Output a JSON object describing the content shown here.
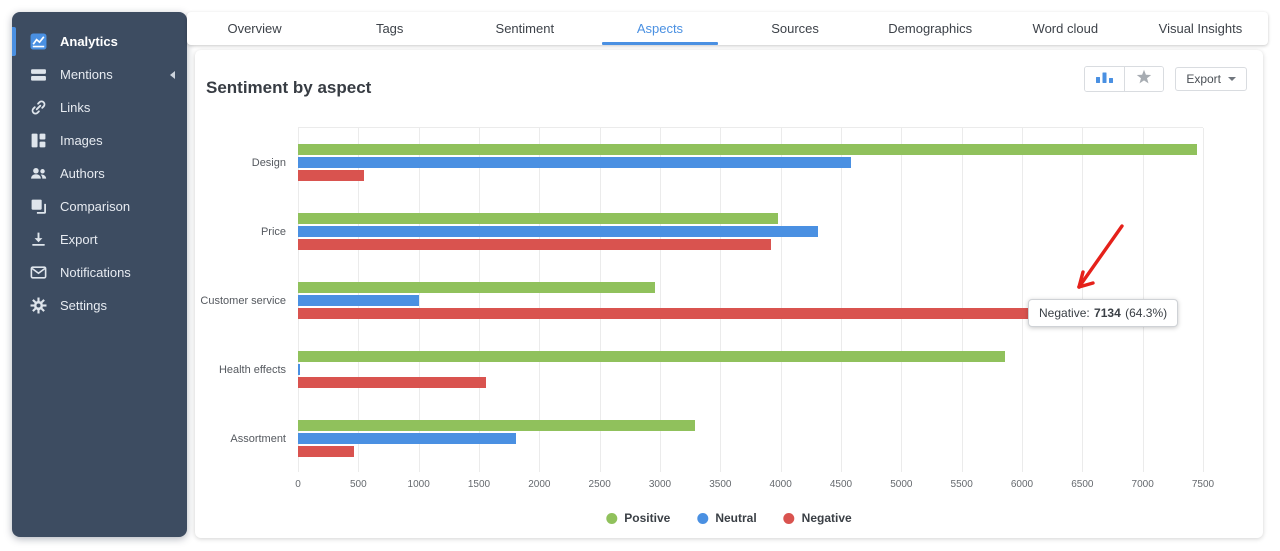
{
  "sidebar": {
    "items": [
      {
        "label": "Analytics",
        "icon": "analytics-icon",
        "active": true,
        "has_submenu": false
      },
      {
        "label": "Mentions",
        "icon": "mentions-icon",
        "active": false,
        "has_submenu": true
      },
      {
        "label": "Links",
        "icon": "links-icon",
        "active": false,
        "has_submenu": false
      },
      {
        "label": "Images",
        "icon": "images-icon",
        "active": false,
        "has_submenu": false
      },
      {
        "label": "Authors",
        "icon": "authors-icon",
        "active": false,
        "has_submenu": false
      },
      {
        "label": "Comparison",
        "icon": "comparison-icon",
        "active": false,
        "has_submenu": false
      },
      {
        "label": "Export",
        "icon": "export-icon",
        "active": false,
        "has_submenu": false
      },
      {
        "label": "Notifications",
        "icon": "notifications-icon",
        "active": false,
        "has_submenu": false
      },
      {
        "label": "Settings",
        "icon": "settings-icon",
        "active": false,
        "has_submenu": false
      }
    ]
  },
  "tabs": {
    "active": "Aspects",
    "items": [
      "Overview",
      "Tags",
      "Sentiment",
      "Aspects",
      "Sources",
      "Demographics",
      "Word cloud",
      "Visual Insights"
    ]
  },
  "panel": {
    "title": "Sentiment by aspect",
    "export_label": "Export",
    "chart_type_buttons": [
      "bar-chart-icon",
      "radar-chart-icon"
    ],
    "accent_color": "#4a90e2"
  },
  "chart_data": {
    "type": "bar",
    "orientation": "horizontal",
    "title": "Sentiment by aspect",
    "categories": [
      "Design",
      "Price",
      "Customer service",
      "Health effects",
      "Assortment"
    ],
    "series": [
      {
        "name": "Positive",
        "color": "#90c15c",
        "values": [
          7450,
          3980,
          2960,
          5860,
          3290
        ]
      },
      {
        "name": "Neutral",
        "color": "#4a90e2",
        "values": [
          4580,
          4310,
          1000,
          20,
          1810
        ]
      },
      {
        "name": "Negative",
        "color": "#d9534f",
        "values": [
          550,
          3920,
          7134,
          1560,
          460
        ]
      }
    ],
    "xlim": [
      0,
      7500
    ],
    "tick_step": 500,
    "grid": true,
    "legend_position": "bottom",
    "tooltip": {
      "label": "Negative:",
      "value": "7134",
      "pct": "(64.3%)"
    }
  }
}
